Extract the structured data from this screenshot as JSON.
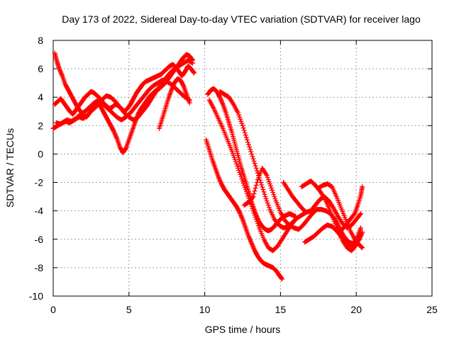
{
  "chart_data": {
    "type": "scatter",
    "title": "Day 173 of 2022, Sidereal Day-to-day VTEC variation (SDTVAR) for receiver lago",
    "xlabel": "GPS time / hours",
    "ylabel": "SDTVAR / TECUs",
    "xlim": [
      0,
      25
    ],
    "ylim": [
      -10,
      8
    ],
    "xticks": [
      0,
      5,
      10,
      15,
      20,
      25
    ],
    "yticks": [
      -10,
      -8,
      -6,
      -4,
      -2,
      0,
      2,
      4,
      6,
      8
    ],
    "grid": true,
    "legend": "none",
    "marker": "plus",
    "series_color": "#ff0000",
    "series": [
      {
        "x": [
          0.1,
          0.25,
          0.4,
          0.6,
          0.8,
          1.0,
          1.2,
          1.4,
          1.6,
          1.8,
          2.0,
          2.2,
          2.4,
          2.6,
          2.8,
          3.0,
          3.2,
          3.4,
          3.6,
          3.8,
          4.0,
          4.2,
          4.4,
          4.6,
          4.8,
          5.0,
          5.2,
          5.4,
          5.6,
          5.8,
          6.0,
          6.2,
          6.4,
          6.6,
          6.8,
          7.0,
          7.2,
          7.4,
          7.6,
          7.8,
          8.0,
          8.2,
          8.4,
          8.6,
          8.8,
          9.0,
          9.2
        ],
        "y": [
          7.1,
          6.5,
          6.0,
          5.5,
          4.9,
          4.5,
          4.1,
          3.7,
          3.3,
          3.0,
          2.8,
          2.6,
          2.9,
          3.2,
          3.5,
          3.6,
          3.2,
          2.8,
          2.4,
          2.0,
          1.6,
          1.1,
          0.5,
          0.1,
          0.4,
          1.0,
          1.6,
          2.2,
          2.8,
          3.2,
          3.5,
          3.8,
          4.1,
          4.3,
          4.5,
          4.6,
          4.8,
          5.0,
          5.3,
          5.6,
          5.9,
          6.2,
          6.5,
          6.8,
          7.0,
          6.9,
          6.6
        ]
      },
      {
        "x": [
          0.1,
          0.3,
          0.5,
          0.7,
          0.9,
          1.1,
          1.3,
          1.5,
          1.7,
          1.9,
          2.1,
          2.3,
          2.5,
          2.7,
          2.9,
          3.1,
          3.3,
          3.5,
          3.7,
          3.9,
          4.1,
          4.3,
          4.5,
          4.7,
          4.9,
          5.1,
          5.3,
          5.5,
          5.7,
          5.9,
          6.1,
          6.3,
          6.5,
          6.7,
          6.9,
          7.1,
          7.3,
          7.5,
          7.7,
          7.9,
          8.1,
          8.3,
          8.5,
          8.7,
          8.9,
          9.1,
          9.3
        ],
        "y": [
          3.5,
          3.7,
          3.9,
          3.6,
          3.3,
          3.0,
          2.8,
          3.1,
          3.4,
          3.7,
          4.0,
          4.2,
          4.4,
          4.3,
          4.1,
          3.9,
          3.6,
          3.4,
          3.2,
          3.3,
          3.5,
          3.4,
          3.2,
          3.0,
          3.2,
          3.5,
          3.9,
          4.3,
          4.6,
          4.9,
          5.1,
          5.2,
          5.3,
          5.4,
          5.5,
          5.6,
          5.8,
          6.0,
          6.2,
          6.3,
          6.1,
          5.8,
          5.5,
          5.8,
          6.2,
          6.0,
          5.7
        ]
      },
      {
        "x": [
          0.0,
          0.3,
          0.6,
          0.9,
          1.2,
          1.5,
          1.8,
          2.1,
          2.4,
          2.7,
          3.0,
          3.3,
          3.6,
          3.9,
          4.2,
          4.5,
          4.8,
          5.1,
          5.4,
          5.7,
          6.0,
          6.3,
          6.6,
          6.9,
          7.2,
          7.5,
          7.8,
          8.1,
          8.4,
          8.7,
          9.0
        ],
        "y": [
          1.8,
          2.0,
          2.2,
          2.4,
          2.3,
          2.5,
          2.8,
          3.0,
          3.3,
          3.6,
          3.8,
          3.5,
          3.2,
          2.9,
          2.6,
          2.4,
          2.6,
          2.9,
          3.3,
          3.7,
          4.1,
          4.5,
          4.8,
          5.0,
          5.2,
          5.1,
          4.9,
          4.6,
          4.3,
          4.0,
          3.8
        ]
      },
      {
        "x": [
          0.2,
          0.5,
          0.8,
          1.1,
          1.4,
          1.7,
          2.0,
          2.3,
          2.6,
          2.9,
          3.2,
          3.5,
          3.8,
          4.1,
          4.4,
          4.7,
          5.0,
          5.3,
          5.6,
          5.9,
          6.2,
          6.5,
          6.8,
          7.1,
          7.4,
          7.7,
          8.0,
          8.3,
          8.6,
          8.9,
          9.2
        ],
        "y": [
          2.2,
          2.1,
          2.3,
          2.2,
          2.4,
          2.6,
          2.5,
          2.8,
          3.1,
          3.4,
          3.8,
          4.1,
          4.0,
          3.7,
          3.3,
          2.9,
          2.6,
          2.4,
          2.6,
          3.0,
          3.4,
          3.9,
          4.4,
          4.9,
          5.3,
          5.7,
          6.0,
          6.2,
          6.4,
          6.6,
          6.4
        ]
      },
      {
        "x": [
          7.0,
          7.2,
          7.4,
          7.6,
          7.8,
          8.0,
          8.2,
          8.4,
          8.6,
          8.8,
          9.0
        ],
        "y": [
          1.8,
          2.5,
          3.2,
          3.9,
          4.5,
          5.0,
          5.3,
          5.2,
          4.8,
          4.2,
          3.6
        ]
      },
      {
        "x": [
          10.1,
          10.3,
          10.5,
          10.7,
          10.9,
          11.1,
          11.3,
          11.5,
          11.7,
          11.9,
          12.1,
          12.3,
          12.5,
          12.7,
          12.9,
          13.1,
          13.3,
          13.5,
          13.7,
          13.9,
          14.1,
          14.3,
          14.5,
          14.7,
          14.9,
          15.1
        ],
        "y": [
          1.0,
          0.3,
          -0.4,
          -1.0,
          -1.6,
          -2.1,
          -2.5,
          -2.8,
          -3.1,
          -3.4,
          -3.7,
          -4.1,
          -4.6,
          -5.2,
          -5.8,
          -6.3,
          -6.8,
          -7.2,
          -7.5,
          -7.7,
          -7.8,
          -7.9,
          -8.0,
          -8.2,
          -8.5,
          -8.8
        ]
      },
      {
        "x": [
          10.2,
          10.4,
          10.6,
          10.8,
          11.0,
          11.2,
          11.4,
          11.6,
          11.8,
          12.0,
          12.2,
          12.4,
          12.6,
          12.8,
          13.0,
          13.2,
          13.4,
          13.6,
          13.8,
          14.0,
          14.2,
          14.4,
          14.6,
          14.8,
          15.0,
          15.2,
          15.4,
          15.6,
          15.8,
          16.0
        ],
        "y": [
          4.2,
          4.5,
          4.6,
          4.4,
          4.0,
          3.5,
          2.9,
          2.2,
          1.5,
          0.7,
          -0.1,
          -0.9,
          -1.6,
          -2.3,
          -3.0,
          -3.7,
          -4.3,
          -4.8,
          -5.1,
          -5.3,
          -5.4,
          -5.3,
          -5.1,
          -4.8,
          -4.6,
          -4.4,
          -4.3,
          -4.2,
          -4.3,
          -4.4
        ]
      },
      {
        "x": [
          10.3,
          10.6,
          10.9,
          11.2,
          11.5,
          11.8,
          12.1,
          12.4,
          12.7,
          13.0,
          13.3,
          13.6,
          13.9,
          14.2,
          14.5,
          14.8,
          15.1,
          15.4,
          15.7,
          16.0
        ],
        "y": [
          3.8,
          3.2,
          2.5,
          1.8,
          1.0,
          0.2,
          -0.7,
          -1.6,
          -2.5,
          -3.4,
          -4.3,
          -5.2,
          -6.0,
          -6.6,
          -6.8,
          -6.5,
          -6.0,
          -5.5,
          -5.0,
          -4.6
        ]
      },
      {
        "x": [
          11.0,
          11.3,
          11.6,
          11.9,
          12.2,
          12.5,
          12.8,
          13.1,
          13.4,
          13.7,
          14.0,
          14.3,
          14.6,
          14.9,
          15.2,
          15.5,
          15.8,
          16.1,
          16.4,
          16.7
        ],
        "y": [
          4.4,
          4.2,
          4.0,
          3.5,
          2.9,
          2.0,
          1.0,
          0.0,
          -1.0,
          -2.0,
          -3.0,
          -3.9,
          -4.6,
          -5.0,
          -5.2,
          -5.1,
          -4.8,
          -4.5,
          -4.3,
          -4.1
        ]
      },
      {
        "x": [
          12.6,
          12.9,
          13.2,
          13.5,
          13.8,
          14.1,
          14.4,
          14.7,
          15.0,
          15.3,
          15.6,
          15.9,
          16.2,
          16.5,
          16.8,
          17.1,
          17.4,
          17.7,
          18.0,
          18.3,
          18.6,
          18.9,
          19.2,
          19.5,
          19.8,
          20.1,
          20.3
        ],
        "y": [
          -3.6,
          -3.4,
          -3.0,
          -1.8,
          -1.0,
          -1.5,
          -2.4,
          -3.3,
          -4.1,
          -4.7,
          -5.0,
          -5.2,
          -5.3,
          -5.0,
          -4.6,
          -4.2,
          -3.9,
          -3.9,
          -4.0,
          -4.2,
          -4.6,
          -5.2,
          -5.8,
          -6.2,
          -6.3,
          -5.8,
          -5.2
        ]
      },
      {
        "x": [
          15.2,
          15.5,
          15.8,
          16.1,
          16.4,
          16.7,
          17.0,
          17.3,
          17.6,
          17.9,
          18.2,
          18.5,
          18.8,
          19.1,
          19.4,
          19.7,
          20.0,
          20.3
        ],
        "y": [
          -2.0,
          -2.5,
          -3.0,
          -3.4,
          -3.8,
          -4.1,
          -4.0,
          -3.6,
          -3.2,
          -3.0,
          -3.3,
          -3.8,
          -4.4,
          -4.9,
          -5.2,
          -5.0,
          -4.6,
          -4.2
        ]
      },
      {
        "x": [
          16.4,
          16.7,
          17.0,
          17.3,
          17.6,
          17.9,
          18.2,
          18.5,
          18.8,
          19.1,
          19.4,
          19.7,
          20.0,
          20.3
        ],
        "y": [
          -2.3,
          -2.1,
          -1.9,
          -2.2,
          -2.6,
          -3.1,
          -3.8,
          -4.6,
          -5.4,
          -6.1,
          -6.6,
          -6.8,
          -6.4,
          -5.7
        ]
      },
      {
        "x": [
          16.6,
          16.9,
          17.2,
          17.5,
          17.8,
          18.1,
          18.4,
          18.7,
          19.0,
          19.3,
          19.6,
          19.9,
          20.2,
          20.4
        ],
        "y": [
          -6.2,
          -6.0,
          -5.8,
          -5.5,
          -5.2,
          -5.0,
          -5.1,
          -5.4,
          -5.8,
          -6.2,
          -6.5,
          -6.5,
          -6.0,
          -5.5
        ]
      },
      {
        "x": [
          17.5,
          17.8,
          18.1,
          18.4,
          18.7,
          19.0,
          19.3,
          19.6,
          19.9,
          20.2,
          20.4
        ],
        "y": [
          -2.4,
          -2.2,
          -2.1,
          -2.3,
          -3.0,
          -3.8,
          -4.6,
          -5.4,
          -6.0,
          -6.4,
          -6.6
        ]
      },
      {
        "x": [
          19.0,
          19.3,
          19.6,
          19.9,
          20.1,
          20.3,
          20.4
        ],
        "y": [
          -5.4,
          -5.0,
          -4.6,
          -4.2,
          -3.6,
          -2.9,
          -2.3
        ]
      }
    ]
  }
}
